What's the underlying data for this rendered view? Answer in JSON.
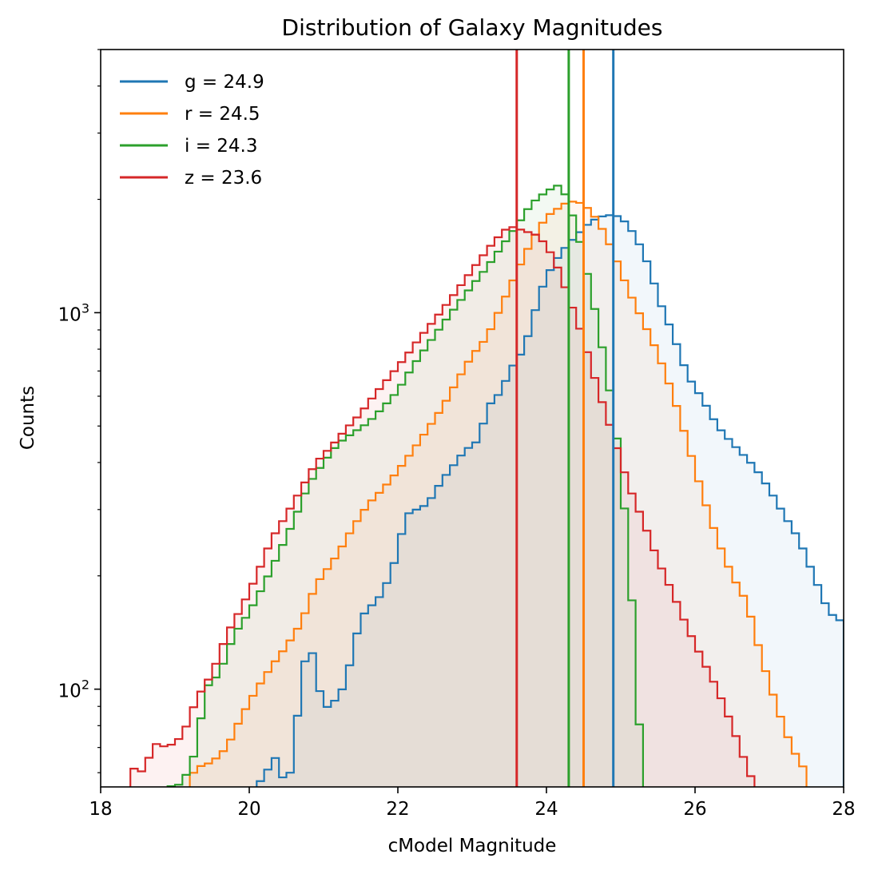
{
  "chart_data": {
    "type": "histogram",
    "title": "Distribution of Galaxy Magnitudes",
    "xlabel": "cModel Magnitude",
    "ylabel": "Counts",
    "xlim": [
      18,
      28
    ],
    "ylim": [
      55,
      5000
    ],
    "yscale": "log",
    "xticks": [
      18,
      20,
      22,
      24,
      26,
      28
    ],
    "xtick_labels": [
      "18",
      "20",
      "22",
      "24",
      "26",
      "28"
    ],
    "yticks": [
      100,
      1000
    ],
    "ytick_labels": [
      {
        "base": "10",
        "exp": "2"
      },
      {
        "base": "10",
        "exp": "3"
      }
    ],
    "grid": false,
    "legend_position": "upper-left",
    "bin_width": 0.1,
    "series": [
      {
        "name": "g",
        "legend": "g = 24.9",
        "color": "#1f77b4",
        "median": 24.9,
        "anchors": [
          [
            19.8,
            40
          ],
          [
            20.1,
            55
          ],
          [
            20.4,
            68
          ],
          [
            20.5,
            50
          ],
          [
            20.6,
            72
          ],
          [
            20.8,
            140
          ],
          [
            21.0,
            88
          ],
          [
            21.2,
            95
          ],
          [
            21.3,
            105
          ],
          [
            21.5,
            155
          ],
          [
            21.8,
            180
          ],
          [
            22.0,
            230
          ],
          [
            22.1,
            290
          ],
          [
            22.4,
            310
          ],
          [
            22.6,
            360
          ],
          [
            22.9,
            430
          ],
          [
            23.1,
            460
          ],
          [
            23.2,
            560
          ],
          [
            23.4,
            620
          ],
          [
            23.5,
            700
          ],
          [
            23.7,
            800
          ],
          [
            23.9,
            1100
          ],
          [
            24.0,
            1250
          ],
          [
            24.2,
            1450
          ],
          [
            24.4,
            1600
          ],
          [
            24.6,
            1750
          ],
          [
            24.8,
            1820
          ],
          [
            25.0,
            1800
          ],
          [
            25.2,
            1600
          ],
          [
            25.4,
            1300
          ],
          [
            25.5,
            1100
          ],
          [
            25.7,
            880
          ],
          [
            25.9,
            680
          ],
          [
            26.1,
            590
          ],
          [
            26.3,
            500
          ],
          [
            26.5,
            450
          ],
          [
            26.8,
            390
          ],
          [
            27.0,
            340
          ],
          [
            27.2,
            290
          ],
          [
            27.4,
            250
          ],
          [
            27.6,
            200
          ],
          [
            27.8,
            160
          ],
          [
            28.0,
            150
          ]
        ]
      },
      {
        "name": "r",
        "legend": "r = 24.5",
        "color": "#ff7f0e",
        "median": 24.5,
        "anchors": [
          [
            19.1,
            50
          ],
          [
            19.2,
            58
          ],
          [
            19.3,
            62
          ],
          [
            19.5,
            64
          ],
          [
            19.7,
            70
          ],
          [
            19.9,
            85
          ],
          [
            20.1,
            100
          ],
          [
            20.3,
            115
          ],
          [
            20.5,
            130
          ],
          [
            20.7,
            150
          ],
          [
            20.9,
            190
          ],
          [
            21.1,
            215
          ],
          [
            21.2,
            230
          ],
          [
            21.4,
            270
          ],
          [
            21.6,
            310
          ],
          [
            21.8,
            340
          ],
          [
            22.0,
            380
          ],
          [
            22.2,
            430
          ],
          [
            22.4,
            490
          ],
          [
            22.6,
            560
          ],
          [
            22.8,
            660
          ],
          [
            23.0,
            770
          ],
          [
            23.2,
            860
          ],
          [
            23.4,
            1050
          ],
          [
            23.6,
            1280
          ],
          [
            23.8,
            1550
          ],
          [
            24.0,
            1800
          ],
          [
            24.3,
            1980
          ],
          [
            24.5,
            1950
          ],
          [
            24.7,
            1750
          ],
          [
            24.9,
            1450
          ],
          [
            25.1,
            1150
          ],
          [
            25.3,
            950
          ],
          [
            25.5,
            780
          ],
          [
            25.7,
            610
          ],
          [
            25.9,
            450
          ],
          [
            26.1,
            330
          ],
          [
            26.3,
            250
          ],
          [
            26.5,
            200
          ],
          [
            26.7,
            170
          ],
          [
            26.9,
            120
          ],
          [
            27.1,
            90
          ],
          [
            27.3,
            70
          ],
          [
            27.5,
            60
          ],
          [
            27.7,
            40
          ]
        ]
      },
      {
        "name": "i",
        "legend": "i = 24.3",
        "color": "#2ca02c",
        "median": 24.3,
        "anchors": [
          [
            18.6,
            45
          ],
          [
            18.7,
            52
          ],
          [
            18.9,
            55
          ],
          [
            19.1,
            56
          ],
          [
            19.3,
            70
          ],
          [
            19.4,
            100
          ],
          [
            19.6,
            110
          ],
          [
            19.8,
            140
          ],
          [
            20.0,
            160
          ],
          [
            20.2,
            190
          ],
          [
            20.4,
            230
          ],
          [
            20.6,
            280
          ],
          [
            20.8,
            350
          ],
          [
            21.0,
            400
          ],
          [
            21.2,
            450
          ],
          [
            21.4,
            480
          ],
          [
            21.6,
            510
          ],
          [
            21.8,
            560
          ],
          [
            22.0,
            620
          ],
          [
            22.2,
            720
          ],
          [
            22.4,
            820
          ],
          [
            22.6,
            930
          ],
          [
            22.8,
            1050
          ],
          [
            23.0,
            1180
          ],
          [
            23.2,
            1320
          ],
          [
            23.4,
            1500
          ],
          [
            23.6,
            1700
          ],
          [
            23.8,
            1950
          ],
          [
            24.0,
            2100
          ],
          [
            24.2,
            2200
          ],
          [
            24.4,
            1700
          ],
          [
            24.6,
            1150
          ],
          [
            24.8,
            720
          ],
          [
            25.0,
            400
          ],
          [
            25.2,
            130
          ],
          [
            25.3,
            50
          ],
          [
            25.4,
            30
          ]
        ]
      },
      {
        "name": "z",
        "legend": "z = 23.6",
        "color": "#d62728",
        "median": 23.6,
        "anchors": [
          [
            18.3,
            48
          ],
          [
            18.4,
            62
          ],
          [
            18.6,
            60
          ],
          [
            18.7,
            72
          ],
          [
            18.9,
            70
          ],
          [
            19.1,
            75
          ],
          [
            19.3,
            95
          ],
          [
            19.5,
            110
          ],
          [
            19.7,
            140
          ],
          [
            19.9,
            165
          ],
          [
            20.1,
            200
          ],
          [
            20.3,
            250
          ],
          [
            20.5,
            290
          ],
          [
            20.7,
            340
          ],
          [
            20.9,
            400
          ],
          [
            21.1,
            440
          ],
          [
            21.3,
            490
          ],
          [
            21.5,
            540
          ],
          [
            21.7,
            610
          ],
          [
            21.9,
            680
          ],
          [
            22.1,
            760
          ],
          [
            22.3,
            860
          ],
          [
            22.5,
            960
          ],
          [
            22.7,
            1080
          ],
          [
            22.9,
            1220
          ],
          [
            23.1,
            1380
          ],
          [
            23.3,
            1550
          ],
          [
            23.5,
            1700
          ],
          [
            23.7,
            1650
          ],
          [
            23.9,
            1600
          ],
          [
            24.1,
            1400
          ],
          [
            24.3,
            1100
          ],
          [
            24.5,
            850
          ],
          [
            24.7,
            620
          ],
          [
            24.9,
            470
          ],
          [
            25.1,
            350
          ],
          [
            25.3,
            280
          ],
          [
            25.5,
            220
          ],
          [
            25.7,
            180
          ],
          [
            25.9,
            145
          ],
          [
            26.1,
            120
          ],
          [
            26.3,
            100
          ],
          [
            26.5,
            80
          ],
          [
            26.7,
            62
          ],
          [
            26.9,
            50
          ]
        ]
      }
    ]
  }
}
